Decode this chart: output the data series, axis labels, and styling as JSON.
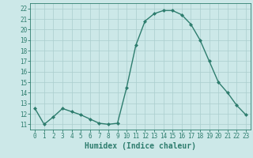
{
  "x": [
    0,
    1,
    2,
    3,
    4,
    5,
    6,
    7,
    8,
    9,
    10,
    11,
    12,
    13,
    14,
    15,
    16,
    17,
    18,
    19,
    20,
    21,
    22,
    23
  ],
  "y": [
    12.5,
    11.0,
    11.7,
    12.5,
    12.2,
    11.9,
    11.5,
    11.1,
    11.0,
    11.1,
    14.5,
    18.5,
    20.8,
    21.5,
    21.8,
    21.8,
    21.4,
    20.5,
    19.0,
    17.0,
    15.0,
    14.0,
    12.8,
    11.9
  ],
  "line_color": "#2e7d6e",
  "marker": "D",
  "marker_size": 2,
  "bg_color": "#cce8e8",
  "grid_color": "#aacece",
  "xlabel": "Humidex (Indice chaleur)",
  "xlim": [
    -0.5,
    23.5
  ],
  "ylim": [
    10.5,
    22.5
  ],
  "yticks": [
    11,
    12,
    13,
    14,
    15,
    16,
    17,
    18,
    19,
    20,
    21,
    22
  ],
  "xticks": [
    0,
    1,
    2,
    3,
    4,
    5,
    6,
    7,
    8,
    9,
    10,
    11,
    12,
    13,
    14,
    15,
    16,
    17,
    18,
    19,
    20,
    21,
    22,
    23
  ],
  "tick_color": "#2e7d6e",
  "label_fontsize": 5.5,
  "xlabel_fontsize": 7,
  "axis_color": "#2e7d6e",
  "linewidth": 1.0
}
